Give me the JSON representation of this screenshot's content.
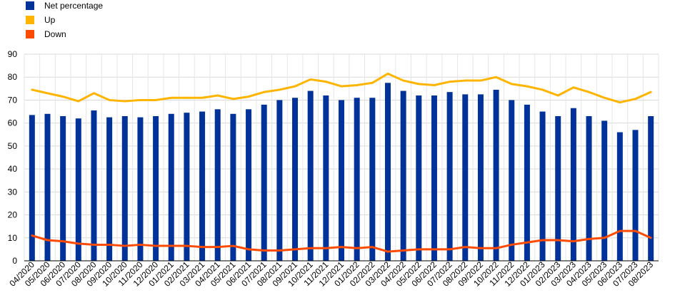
{
  "chart_data": {
    "type": "bar",
    "title": "",
    "xlabel": "",
    "ylabel": "",
    "ylim": [
      0,
      90
    ],
    "yticks": [
      0,
      10,
      20,
      30,
      40,
      50,
      60,
      70,
      80,
      90
    ],
    "grid": true,
    "legend_position": "top-left",
    "categories": [
      "04/2020",
      "05/2020",
      "06/2020",
      "07/2020",
      "08/2020",
      "09/2020",
      "10/2020",
      "11/2020",
      "12/2020",
      "01/2021",
      "02/2021",
      "03/2021",
      "04/2021",
      "05/2021",
      "06/2021",
      "07/2021",
      "08/2021",
      "09/2021",
      "10/2021",
      "11/2021",
      "12/2021",
      "01/2022",
      "02/2022",
      "03/2022",
      "04/2022",
      "05/2022",
      "06/2022",
      "07/2022",
      "08/2022",
      "09/2022",
      "10/2022",
      "11/2022",
      "12/2022",
      "01/2023",
      "02/2023",
      "03/2023",
      "04/2023",
      "05/2023",
      "06/2023",
      "07/2023",
      "08/2023"
    ],
    "series": [
      {
        "name": "Net percentage",
        "kind": "bar",
        "color": "#003299",
        "values": [
          63.5,
          64,
          63,
          62,
          65.5,
          62.5,
          63,
          62.5,
          63,
          64,
          64.5,
          65,
          66,
          64,
          66,
          68,
          70,
          71,
          74,
          72,
          70,
          71,
          71,
          77.5,
          74,
          72,
          72,
          73.5,
          72.5,
          72.5,
          74.5,
          70,
          68,
          65,
          63,
          66.5,
          63,
          61,
          56,
          57,
          63
        ]
      },
      {
        "name": "Up",
        "kind": "line",
        "color": "#FFB400",
        "values": [
          74.5,
          73,
          71.5,
          69.5,
          73,
          70,
          69.5,
          70,
          70,
          71,
          71,
          71,
          72,
          70.5,
          71.5,
          73.5,
          74.5,
          76,
          79,
          78,
          76,
          76.5,
          77.5,
          81.5,
          78.5,
          77,
          76.5,
          78,
          78.5,
          78.5,
          80,
          77,
          76,
          74.5,
          72,
          75.5,
          73.5,
          71,
          69,
          70.5,
          73.5
        ]
      },
      {
        "name": "Down",
        "kind": "line",
        "color": "#FF4B00",
        "values": [
          11,
          9,
          8.5,
          7.5,
          7,
          7,
          6.5,
          7,
          6.5,
          6.5,
          6.5,
          6,
          6,
          6.5,
          5,
          4.5,
          4.5,
          5,
          5.5,
          5.5,
          6,
          5.5,
          6,
          4,
          4.5,
          5,
          5,
          5,
          6,
          5.5,
          5.5,
          7,
          8,
          9,
          9,
          8.5,
          9.5,
          10,
          13,
          13,
          10
        ]
      }
    ]
  }
}
